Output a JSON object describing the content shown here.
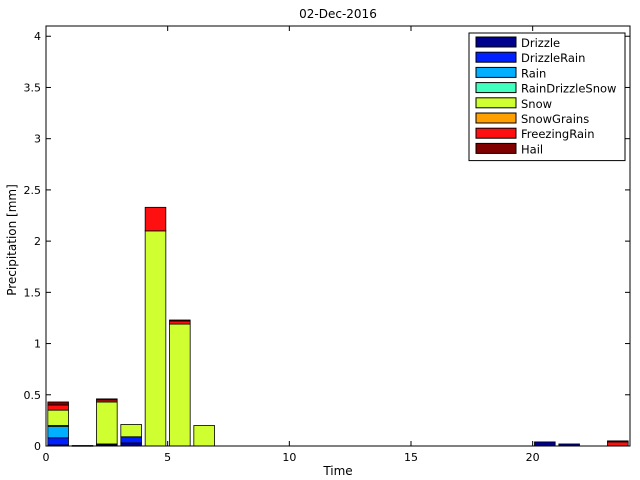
{
  "chart_data": {
    "type": "bar",
    "stacked": true,
    "title": "02-Dec-2016",
    "xlabel": "Time",
    "ylabel": "Precipitation [mm]",
    "xlim": [
      0,
      24
    ],
    "ylim": [
      0,
      4.1
    ],
    "xticks": [
      0,
      5,
      10,
      15,
      20
    ],
    "yticks": [
      0,
      0.5,
      1,
      1.5,
      2,
      2.5,
      3,
      3.5,
      4
    ],
    "xtick_labels": [
      "0",
      "5",
      "10",
      "15",
      "20"
    ],
    "ytick_labels": [
      "0",
      "0.5",
      "1",
      "1.5",
      "2",
      "2.5",
      "3",
      "3.5",
      "4"
    ],
    "bar_width": 0.85,
    "grid": false,
    "legend_position": "top-right",
    "x": [
      0.5,
      1.5,
      2.5,
      3.5,
      4.5,
      5.5,
      6.5,
      7.5,
      8.5,
      9.5,
      10.5,
      11.5,
      12.5,
      13.5,
      14.5,
      15.5,
      16.5,
      17.5,
      18.5,
      19.5,
      20.5,
      21.5,
      22.5,
      23.5
    ],
    "series": [
      {
        "name": "Drizzle",
        "color": "#00008f",
        "values": [
          0.01,
          0.005,
          0.01,
          0.03,
          0,
          0,
          0,
          0,
          0,
          0,
          0,
          0,
          0,
          0,
          0,
          0,
          0,
          0,
          0,
          0,
          0.04,
          0.02,
          0,
          0
        ]
      },
      {
        "name": "DrizzleRain",
        "color": "#0020ff",
        "values": [
          0.07,
          0,
          0.01,
          0.06,
          0,
          0,
          0,
          0,
          0,
          0,
          0,
          0,
          0,
          0,
          0,
          0,
          0,
          0,
          0,
          0,
          0,
          0,
          0,
          0
        ]
      },
      {
        "name": "Rain",
        "color": "#00afff",
        "values": [
          0.11,
          0,
          0,
          0,
          0,
          0,
          0,
          0,
          0,
          0,
          0,
          0,
          0,
          0,
          0,
          0,
          0,
          0,
          0,
          0,
          0,
          0,
          0,
          0
        ]
      },
      {
        "name": "RainDrizzleSnow",
        "color": "#40ffbf",
        "values": [
          0.01,
          0,
          0,
          0,
          0,
          0,
          0,
          0,
          0,
          0,
          0,
          0,
          0,
          0,
          0,
          0,
          0,
          0,
          0,
          0,
          0,
          0,
          0,
          0
        ]
      },
      {
        "name": "Snow",
        "color": "#cfff30",
        "values": [
          0.15,
          0,
          0.41,
          0.12,
          2.1,
          1.19,
          0.2,
          0,
          0,
          0,
          0,
          0,
          0,
          0,
          0,
          0,
          0,
          0,
          0,
          0,
          0,
          0,
          0,
          0
        ]
      },
      {
        "name": "SnowGrains",
        "color": "#ff9f00",
        "values": [
          0,
          0,
          0,
          0,
          0,
          0,
          0,
          0,
          0,
          0,
          0,
          0,
          0,
          0,
          0,
          0,
          0,
          0,
          0,
          0,
          0,
          0,
          0,
          0
        ]
      },
      {
        "name": "FreezingRain",
        "color": "#ff1010",
        "values": [
          0.05,
          0,
          0.02,
          0,
          0.23,
          0.03,
          0,
          0,
          0,
          0,
          0,
          0,
          0,
          0,
          0,
          0,
          0,
          0,
          0,
          0,
          0,
          0,
          0,
          0.04
        ]
      },
      {
        "name": "Hail",
        "color": "#800000",
        "values": [
          0.03,
          0,
          0.01,
          0,
          0,
          0.01,
          0,
          0,
          0,
          0,
          0,
          0,
          0,
          0,
          0,
          0,
          0,
          0,
          0,
          0,
          0,
          0,
          0,
          0.01
        ]
      }
    ]
  }
}
